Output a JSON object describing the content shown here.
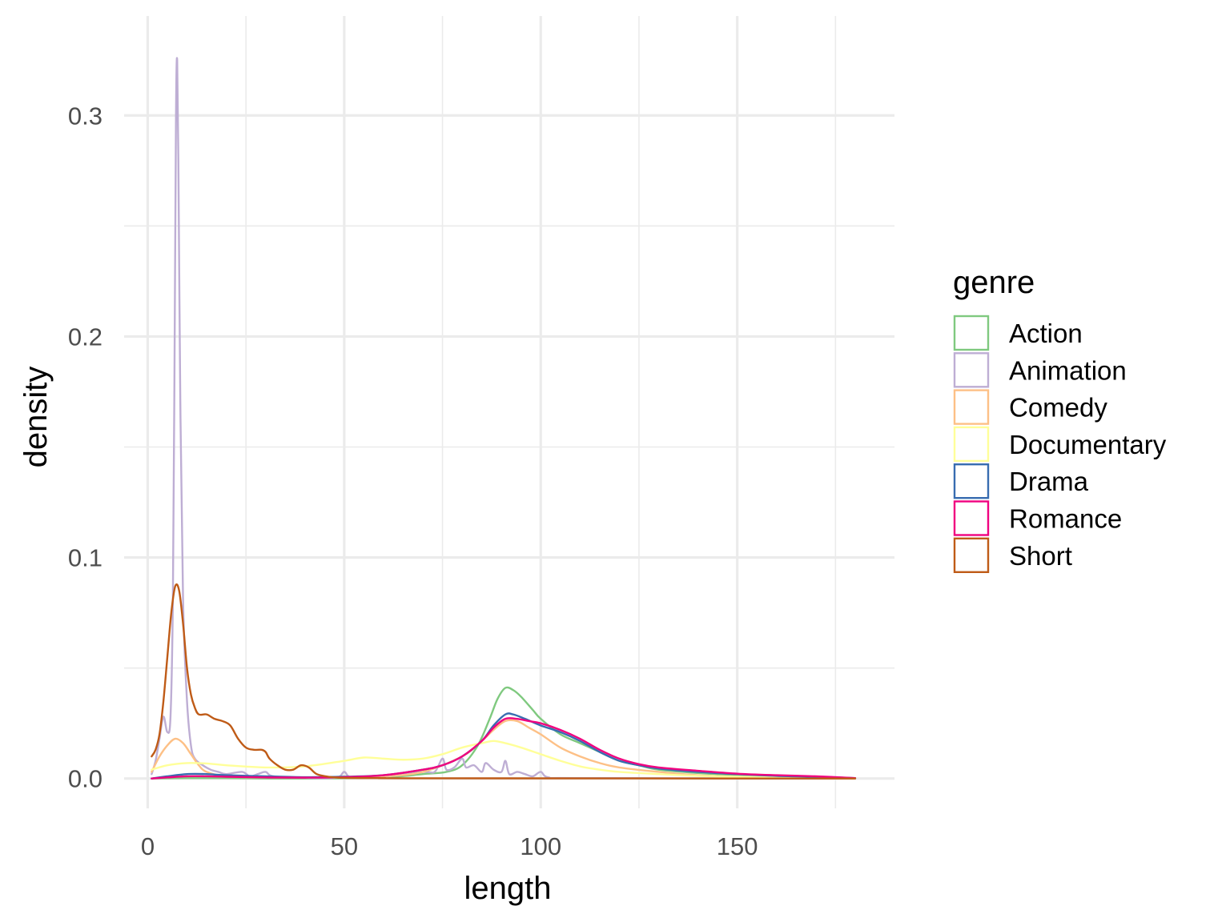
{
  "chart_data": {
    "type": "line",
    "title": "",
    "xlabel": "length",
    "ylabel": "density",
    "xlim": [
      -6,
      190
    ],
    "ylim": [
      -0.0135,
      0.345
    ],
    "x_ticks": [
      0,
      50,
      100,
      150
    ],
    "x_tick_labels": [
      "0",
      "50",
      "100",
      "150"
    ],
    "x_minor_ticks": [
      25,
      75,
      125,
      175
    ],
    "y_ticks": [
      0.0,
      0.1,
      0.2,
      0.3
    ],
    "y_tick_labels": [
      "0.0",
      "0.1",
      "0.2",
      "0.3"
    ],
    "y_minor_ticks": [
      0.05,
      0.15,
      0.25
    ],
    "grid": true,
    "legend": {
      "title": "genre",
      "position": "right"
    },
    "series": [
      {
        "name": "Action",
        "color": "#7fc97f",
        "points": [
          [
            1,
            0
          ],
          [
            10,
            0.0002
          ],
          [
            20,
            0.0002
          ],
          [
            40,
            0
          ],
          [
            60,
            0.0005
          ],
          [
            70,
            0.002
          ],
          [
            76,
            0.003
          ],
          [
            80,
            0.006
          ],
          [
            84,
            0.015
          ],
          [
            87,
            0.027
          ],
          [
            89,
            0.036
          ],
          [
            91,
            0.041
          ],
          [
            93,
            0.04
          ],
          [
            95,
            0.037
          ],
          [
            98,
            0.031
          ],
          [
            100,
            0.027
          ],
          [
            105,
            0.02
          ],
          [
            110,
            0.016
          ],
          [
            115,
            0.012
          ],
          [
            120,
            0.008
          ],
          [
            125,
            0.006
          ],
          [
            130,
            0.004
          ],
          [
            140,
            0.0025
          ],
          [
            150,
            0.0015
          ],
          [
            160,
            0.0008
          ],
          [
            170,
            0.0004
          ],
          [
            180,
            0.0001
          ]
        ]
      },
      {
        "name": "Animation",
        "color": "#beaed4",
        "points": [
          [
            1,
            0.002
          ],
          [
            2,
            0.008
          ],
          [
            3,
            0.018
          ],
          [
            4,
            0.028
          ],
          [
            5,
            0.021
          ],
          [
            5.8,
            0.028
          ],
          [
            6.4,
            0.08
          ],
          [
            6.8,
            0.18
          ],
          [
            7.2,
            0.3
          ],
          [
            7.5,
            0.325
          ],
          [
            7.8,
            0.28
          ],
          [
            8.3,
            0.17
          ],
          [
            9,
            0.08
          ],
          [
            10,
            0.035
          ],
          [
            11,
            0.015
          ],
          [
            12,
            0.009
          ],
          [
            14,
            0.006
          ],
          [
            16,
            0.004
          ],
          [
            18,
            0.003
          ],
          [
            20,
            0.002
          ],
          [
            24,
            0.003
          ],
          [
            26,
            0.001
          ],
          [
            28,
            0.002
          ],
          [
            30,
            0.003
          ],
          [
            32,
            0.001
          ],
          [
            40,
            0.0003
          ],
          [
            48,
            0.0004
          ],
          [
            50,
            0.003
          ],
          [
            52,
            0.0005
          ],
          [
            60,
            0.0008
          ],
          [
            70,
            0.003
          ],
          [
            73,
            0.003
          ],
          [
            75,
            0.009
          ],
          [
            76,
            0.004
          ],
          [
            78,
            0.005
          ],
          [
            80,
            0.009
          ],
          [
            81,
            0.005
          ],
          [
            83,
            0.006
          ],
          [
            85,
            0.003
          ],
          [
            86,
            0.007
          ],
          [
            88,
            0.004
          ],
          [
            90,
            0.003
          ],
          [
            91,
            0.008
          ],
          [
            92,
            0.002
          ],
          [
            94,
            0.003
          ],
          [
            96,
            0.002
          ],
          [
            98,
            0.001
          ],
          [
            100,
            0.003
          ],
          [
            102,
            0.0005
          ],
          [
            110,
            0.0002
          ],
          [
            180,
            0
          ]
        ]
      },
      {
        "name": "Comedy",
        "color": "#fdc086",
        "points": [
          [
            1,
            0.003
          ],
          [
            3,
            0.01
          ],
          [
            5,
            0.015
          ],
          [
            7,
            0.018
          ],
          [
            9,
            0.016
          ],
          [
            11,
            0.011
          ],
          [
            13,
            0.006
          ],
          [
            15,
            0.003
          ],
          [
            20,
            0.001
          ],
          [
            30,
            0.0005
          ],
          [
            40,
            0.0005
          ],
          [
            50,
            0.0008
          ],
          [
            60,
            0.001
          ],
          [
            70,
            0.003
          ],
          [
            80,
            0.01
          ],
          [
            85,
            0.017
          ],
          [
            88,
            0.022
          ],
          [
            91,
            0.026
          ],
          [
            94,
            0.026
          ],
          [
            97,
            0.023
          ],
          [
            100,
            0.02
          ],
          [
            105,
            0.014
          ],
          [
            110,
            0.01
          ],
          [
            115,
            0.007
          ],
          [
            120,
            0.005
          ],
          [
            130,
            0.003
          ],
          [
            140,
            0.0015
          ],
          [
            150,
            0.0008
          ],
          [
            160,
            0.0004
          ],
          [
            170,
            0.0002
          ],
          [
            180,
            0
          ]
        ]
      },
      {
        "name": "Documentary",
        "color": "#ffff99",
        "points": [
          [
            1,
            0.004
          ],
          [
            5,
            0.006
          ],
          [
            10,
            0.007
          ],
          [
            15,
            0.0068
          ],
          [
            20,
            0.006
          ],
          [
            30,
            0.005
          ],
          [
            40,
            0.0055
          ],
          [
            50,
            0.008
          ],
          [
            55,
            0.0095
          ],
          [
            60,
            0.009
          ],
          [
            65,
            0.0085
          ],
          [
            70,
            0.009
          ],
          [
            75,
            0.011
          ],
          [
            80,
            0.014
          ],
          [
            85,
            0.016
          ],
          [
            88,
            0.017
          ],
          [
            91,
            0.016
          ],
          [
            95,
            0.014
          ],
          [
            100,
            0.011
          ],
          [
            105,
            0.008
          ],
          [
            110,
            0.0055
          ],
          [
            115,
            0.004
          ],
          [
            120,
            0.003
          ],
          [
            130,
            0.002
          ],
          [
            140,
            0.0012
          ],
          [
            150,
            0.0008
          ],
          [
            160,
            0.0005
          ],
          [
            170,
            0.0003
          ],
          [
            180,
            0.0001
          ]
        ]
      },
      {
        "name": "Drama",
        "color": "#386cb0",
        "points": [
          [
            1,
            0
          ],
          [
            5,
            0.001
          ],
          [
            10,
            0.002
          ],
          [
            15,
            0.002
          ],
          [
            20,
            0.0015
          ],
          [
            30,
            0.001
          ],
          [
            40,
            0.0006
          ],
          [
            50,
            0.0008
          ],
          [
            60,
            0.0015
          ],
          [
            70,
            0.004
          ],
          [
            75,
            0.006
          ],
          [
            80,
            0.01
          ],
          [
            85,
            0.017
          ],
          [
            88,
            0.024
          ],
          [
            91,
            0.029
          ],
          [
            93,
            0.029
          ],
          [
            96,
            0.027
          ],
          [
            100,
            0.024
          ],
          [
            105,
            0.021
          ],
          [
            110,
            0.017
          ],
          [
            115,
            0.012
          ],
          [
            120,
            0.008
          ],
          [
            125,
            0.006
          ],
          [
            130,
            0.0045
          ],
          [
            140,
            0.003
          ],
          [
            150,
            0.002
          ],
          [
            160,
            0.0012
          ],
          [
            170,
            0.0008
          ],
          [
            180,
            0.0002
          ]
        ]
      },
      {
        "name": "Romance",
        "color": "#f0027f",
        "points": [
          [
            1,
            0
          ],
          [
            5,
            0.0005
          ],
          [
            10,
            0.001
          ],
          [
            15,
            0.001
          ],
          [
            20,
            0.0008
          ],
          [
            30,
            0.0005
          ],
          [
            40,
            0.0004
          ],
          [
            50,
            0.0006
          ],
          [
            60,
            0.0015
          ],
          [
            70,
            0.004
          ],
          [
            75,
            0.006
          ],
          [
            80,
            0.01
          ],
          [
            85,
            0.017
          ],
          [
            88,
            0.023
          ],
          [
            91,
            0.027
          ],
          [
            94,
            0.027
          ],
          [
            97,
            0.026
          ],
          [
            100,
            0.025
          ],
          [
            105,
            0.022
          ],
          [
            110,
            0.018
          ],
          [
            115,
            0.013
          ],
          [
            120,
            0.009
          ],
          [
            125,
            0.0065
          ],
          [
            130,
            0.005
          ],
          [
            140,
            0.0035
          ],
          [
            150,
            0.0022
          ],
          [
            160,
            0.0015
          ],
          [
            170,
            0.001
          ],
          [
            180,
            0.0002
          ]
        ]
      },
      {
        "name": "Short",
        "color": "#bf5b17",
        "points": [
          [
            1,
            0.01
          ],
          [
            2,
            0.013
          ],
          [
            3,
            0.02
          ],
          [
            4,
            0.035
          ],
          [
            5,
            0.055
          ],
          [
            6,
            0.075
          ],
          [
            7,
            0.087
          ],
          [
            8,
            0.085
          ],
          [
            9,
            0.07
          ],
          [
            10,
            0.05
          ],
          [
            11,
            0.038
          ],
          [
            12,
            0.032
          ],
          [
            13,
            0.029
          ],
          [
            15,
            0.029
          ],
          [
            17,
            0.027
          ],
          [
            19,
            0.026
          ],
          [
            21,
            0.024
          ],
          [
            23,
            0.018
          ],
          [
            25,
            0.014
          ],
          [
            27,
            0.013
          ],
          [
            29,
            0.013
          ],
          [
            30,
            0.012
          ],
          [
            31,
            0.009
          ],
          [
            33,
            0.006
          ],
          [
            35,
            0.004
          ],
          [
            37,
            0.004
          ],
          [
            39,
            0.006
          ],
          [
            41,
            0.005
          ],
          [
            43,
            0.002
          ],
          [
            46,
            0.0008
          ],
          [
            50,
            0.0003
          ],
          [
            60,
            0.0002
          ],
          [
            70,
            0.0001
          ],
          [
            180,
            0
          ]
        ]
      }
    ]
  }
}
